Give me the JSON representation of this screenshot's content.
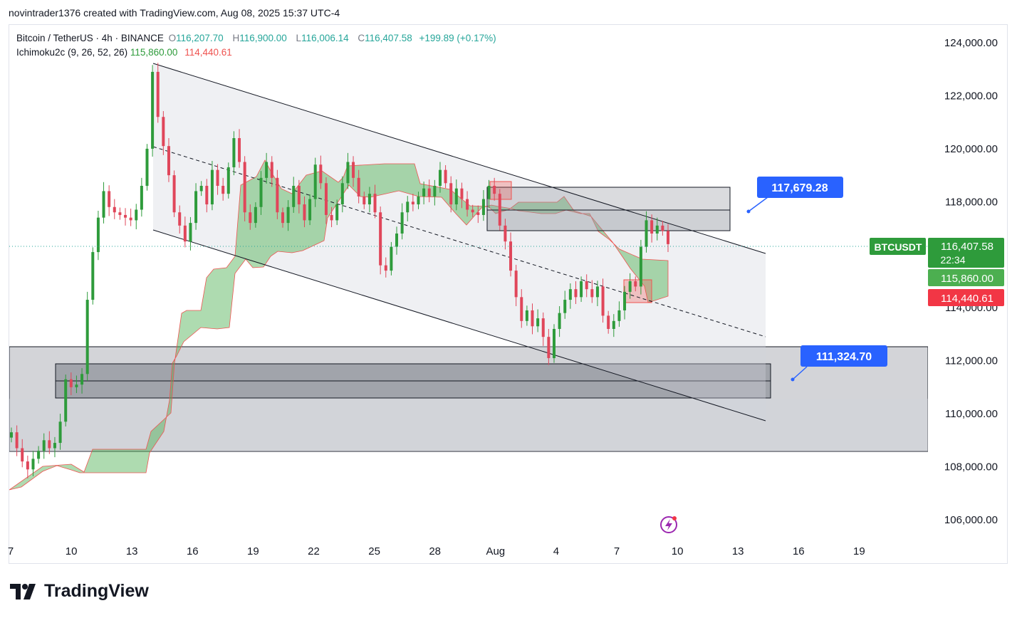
{
  "header": {
    "text": "novintrader1376 created with TradingView.com, Aug 08, 2025 15:37 UTC-4"
  },
  "legend": {
    "symbol": "Bitcoin / TetherUS · 4h · BINANCE",
    "open_label": "O",
    "open": "116,207.70",
    "high_label": "H",
    "high": "116,900.00",
    "low_label": "L",
    "low": "116,006.14",
    "close_label": "C",
    "close": "116,407.58",
    "change": "+199.89 (+0.17%)",
    "indicator": "Ichimoku2c (9, 26, 52, 26)",
    "ind_val1": "115,860.00",
    "ind_val2": "114,440.61"
  },
  "footer": {
    "brand": "TradingView"
  },
  "chart_data": {
    "type": "line",
    "symbol": "BTCUSDT",
    "ylim": [
      105000,
      124800
    ],
    "y_ticks": [
      106000,
      108000,
      110000,
      112000,
      114000,
      116000,
      118000,
      120000,
      122000,
      124000
    ],
    "y_tick_labels": [
      "106,000.00",
      "108,000.00",
      "110,000.00",
      "112,000.00",
      "114,000.00",
      "116,000.00",
      "118,000.00",
      "120,000.00",
      "122,000.00",
      "124,000.00"
    ],
    "x_ticks": [
      "7",
      "10",
      "13",
      "16",
      "19",
      "22",
      "25",
      "28",
      "Aug",
      "4",
      "7",
      "10",
      "13",
      "16",
      "19"
    ],
    "last_price_label": "BTCUSDT",
    "last_price": "116,407.58",
    "countdown": "22:34",
    "cloud_a": "115,860.00",
    "cloud_b": "114,440.61",
    "annotations": [
      {
        "text": "117,679.28",
        "value": 117679.28
      },
      {
        "text": "111,324.70",
        "value": 111324.7
      }
    ],
    "price_series": [
      [
        0,
        109300
      ],
      [
        1,
        108700
      ],
      [
        2,
        108200
      ],
      [
        3,
        107900
      ],
      [
        4,
        108300
      ],
      [
        5,
        108600
      ],
      [
        6,
        109000
      ],
      [
        7,
        108700
      ],
      [
        8,
        108900
      ],
      [
        9,
        109700
      ],
      [
        10,
        111300
      ],
      [
        11,
        111000
      ],
      [
        12,
        111100
      ],
      [
        13,
        111500
      ],
      [
        14,
        114300
      ],
      [
        15,
        116100
      ],
      [
        16,
        117400
      ],
      [
        17,
        118400
      ],
      [
        18,
        117800
      ],
      [
        19,
        117600
      ],
      [
        20,
        117500
      ],
      [
        21,
        117400
      ],
      [
        22,
        117300
      ],
      [
        23,
        117700
      ],
      [
        24,
        118600
      ],
      [
        25,
        120000
      ],
      [
        26,
        122900
      ],
      [
        27,
        121200
      ],
      [
        28,
        120100
      ],
      [
        29,
        119000
      ],
      [
        30,
        117600
      ],
      [
        31,
        117100
      ],
      [
        32,
        116500
      ],
      [
        33,
        117200
      ],
      [
        34,
        118400
      ],
      [
        35,
        118600
      ],
      [
        36,
        117900
      ],
      [
        37,
        119200
      ],
      [
        38,
        118600
      ],
      [
        39,
        118300
      ],
      [
        40,
        119300
      ],
      [
        41,
        120400
      ],
      [
        42,
        119500
      ],
      [
        43,
        117600
      ],
      [
        44,
        117200
      ],
      [
        45,
        117800
      ],
      [
        46,
        118900
      ],
      [
        47,
        119500
      ],
      [
        48,
        118900
      ],
      [
        49,
        117600
      ],
      [
        50,
        117200
      ],
      [
        51,
        117800
      ],
      [
        52,
        118600
      ],
      [
        53,
        117900
      ],
      [
        54,
        117300
      ],
      [
        55,
        118100
      ],
      [
        56,
        119400
      ],
      [
        57,
        118700
      ],
      [
        58,
        117500
      ],
      [
        59,
        117300
      ],
      [
        60,
        117900
      ],
      [
        61,
        118700
      ],
      [
        62,
        119500
      ],
      [
        63,
        118900
      ],
      [
        64,
        118200
      ],
      [
        65,
        117900
      ],
      [
        66,
        118300
      ],
      [
        67,
        117600
      ],
      [
        68,
        115600
      ],
      [
        69,
        115400
      ],
      [
        70,
        116300
      ],
      [
        71,
        116800
      ],
      [
        72,
        117600
      ],
      [
        73,
        118000
      ],
      [
        74,
        117900
      ],
      [
        75,
        118200
      ],
      [
        76,
        118500
      ],
      [
        77,
        118200
      ],
      [
        78,
        118600
      ],
      [
        79,
        119200
      ],
      [
        80,
        118700
      ],
      [
        81,
        117900
      ],
      [
        82,
        118500
      ],
      [
        83,
        118100
      ],
      [
        84,
        117700
      ],
      [
        85,
        117600
      ],
      [
        86,
        117500
      ],
      [
        87,
        118100
      ],
      [
        88,
        118600
      ],
      [
        89,
        118300
      ],
      [
        90,
        117100
      ],
      [
        91,
        116500
      ],
      [
        92,
        115400
      ],
      [
        93,
        114400
      ],
      [
        94,
        113500
      ],
      [
        95,
        113900
      ],
      [
        96,
        113300
      ],
      [
        97,
        113600
      ],
      [
        98,
        112900
      ],
      [
        99,
        112100
      ],
      [
        100,
        113200
      ],
      [
        101,
        113800
      ],
      [
        102,
        114300
      ],
      [
        103,
        114700
      ],
      [
        104,
        114400
      ],
      [
        105,
        115000
      ],
      [
        106,
        114700
      ],
      [
        107,
        114400
      ],
      [
        108,
        114800
      ],
      [
        109,
        113700
      ],
      [
        110,
        113200
      ],
      [
        111,
        113500
      ],
      [
        112,
        113900
      ],
      [
        113,
        114600
      ],
      [
        114,
        115000
      ],
      [
        115,
        114800
      ],
      [
        116,
        116300
      ],
      [
        117,
        117300
      ],
      [
        118,
        116800
      ],
      [
        119,
        117100
      ],
      [
        120,
        116900
      ],
      [
        121,
        116400
      ]
    ],
    "levels": [
      117679.28,
      116407.58,
      115860.0,
      114440.61,
      111324.7
    ]
  }
}
